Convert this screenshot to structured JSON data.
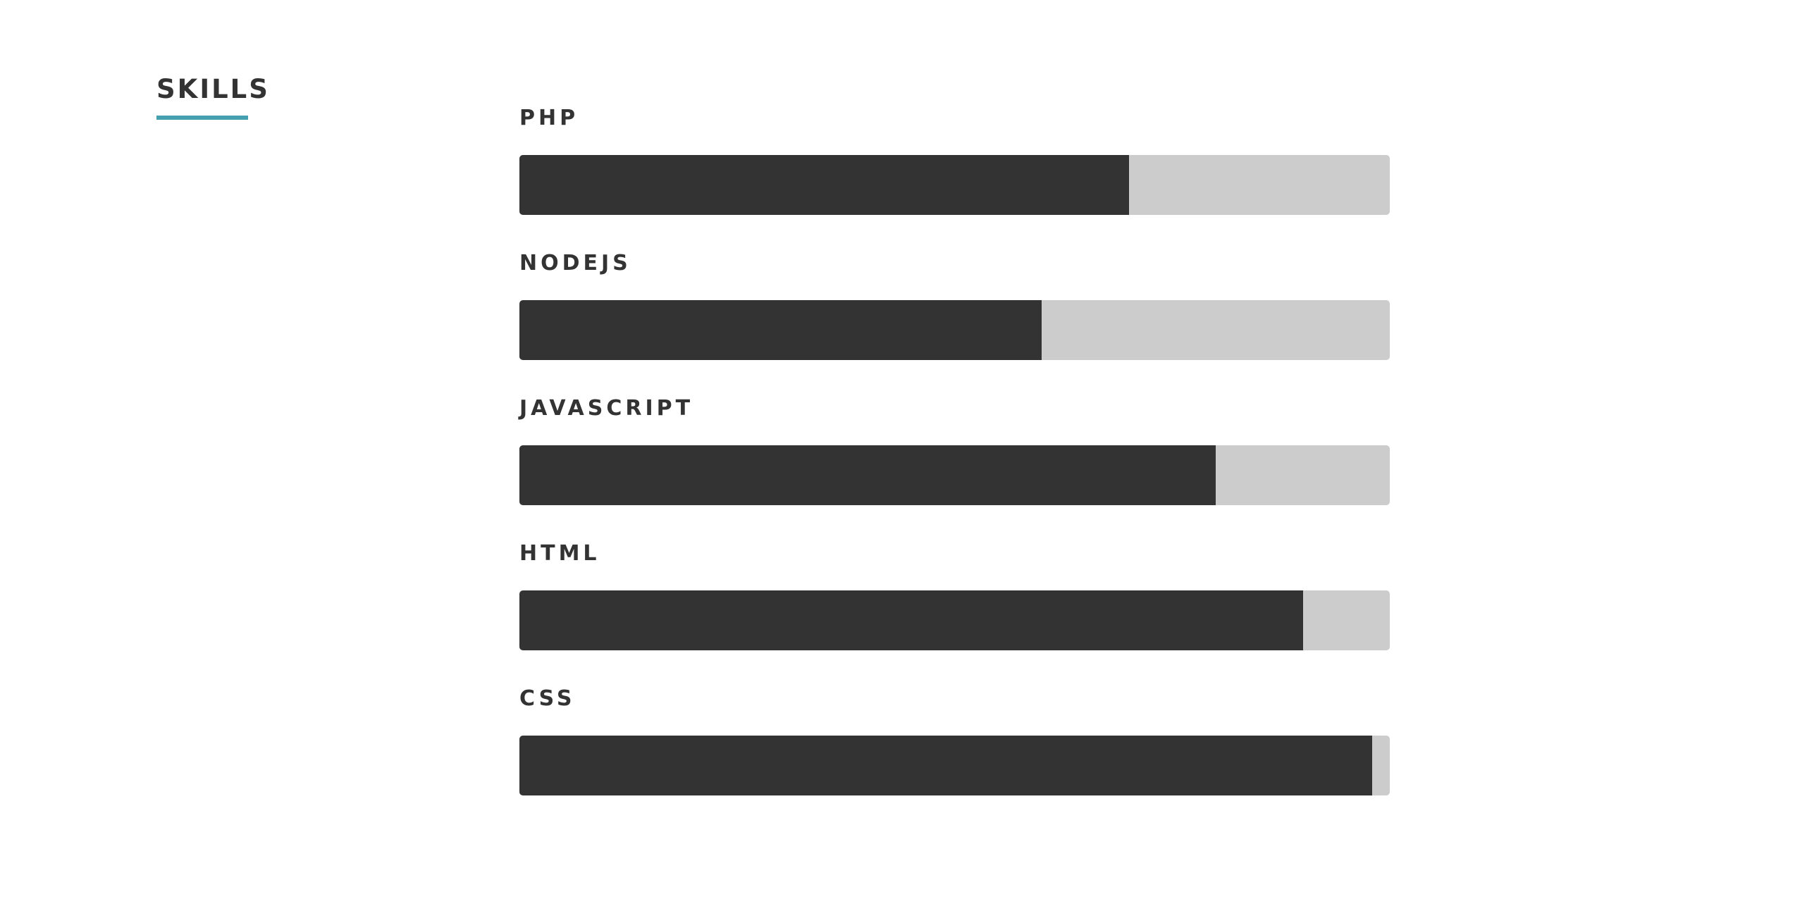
{
  "section": {
    "title": "SKILLS",
    "accent_color": "#45a1b0"
  },
  "colors": {
    "bar_fill": "#333333",
    "bar_track": "#cccccc"
  },
  "skills": [
    {
      "label": "PHP",
      "percent": 70
    },
    {
      "label": "NODEJS",
      "percent": 60
    },
    {
      "label": "JAVASCRIPT",
      "percent": 80
    },
    {
      "label": "HTML",
      "percent": 90
    },
    {
      "label": "CSS",
      "percent": 98
    }
  ]
}
